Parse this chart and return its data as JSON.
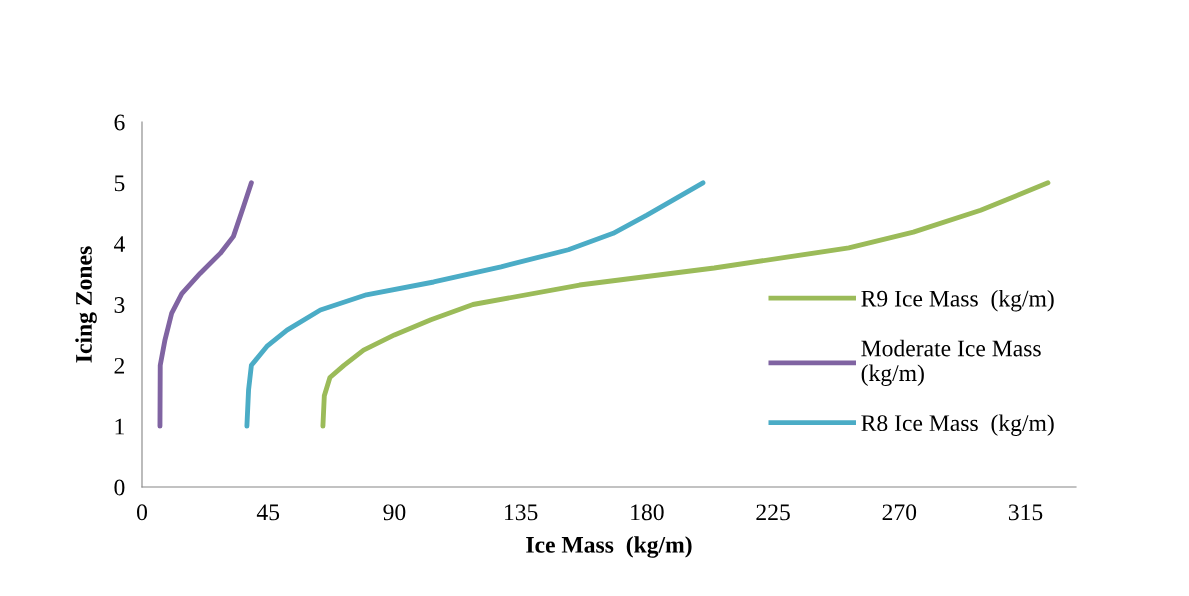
{
  "chart_data": {
    "type": "line",
    "xlabel": "Ice Mass  (kg/m)",
    "ylabel": "Icing Zones",
    "xlim": [
      0,
      333
    ],
    "xticks": [
      0,
      45,
      90,
      135,
      180,
      225,
      270,
      315
    ],
    "ylim": [
      0,
      6
    ],
    "yticks": [
      0,
      1,
      2,
      3,
      4,
      5,
      6
    ],
    "grid": false,
    "legend": "right",
    "marker": "none",
    "line_style": "solid",
    "series": [
      {
        "name": "R9 Ice Mass  (kg/m)",
        "color": "#9bbb59",
        "x": [
          64.5,
          65,
          67,
          72,
          79,
          90,
          103,
          118,
          156,
          204,
          252,
          275,
          299,
          323
        ],
        "values": [
          1,
          1.5,
          1.8,
          2,
          2.25,
          2.5,
          2.75,
          3,
          3.32,
          3.6,
          3.93,
          4.19,
          4.55,
          5
        ]
      },
      {
        "name": "Moderate Ice Mass (kg/m)",
        "color": "#8064a2",
        "x": [
          6.4,
          6.5,
          8.2,
          10.6,
          14.2,
          20.7,
          27.9,
          32.6,
          36.2,
          39
        ],
        "values": [
          1,
          2,
          2.42,
          2.86,
          3.18,
          3.51,
          3.84,
          4.12,
          4.61,
          5
        ]
      },
      {
        "name": "R8 Ice Mass  (kg/m)",
        "color": "#4bacc6",
        "x": [
          37.4,
          38,
          39,
          44.5,
          51.7,
          63.6,
          80,
          104,
          128,
          152,
          168,
          180,
          200
        ],
        "values": [
          1,
          1.6,
          2,
          2.31,
          2.58,
          2.91,
          3.16,
          3.37,
          3.62,
          3.9,
          4.17,
          4.47,
          5
        ]
      }
    ]
  }
}
